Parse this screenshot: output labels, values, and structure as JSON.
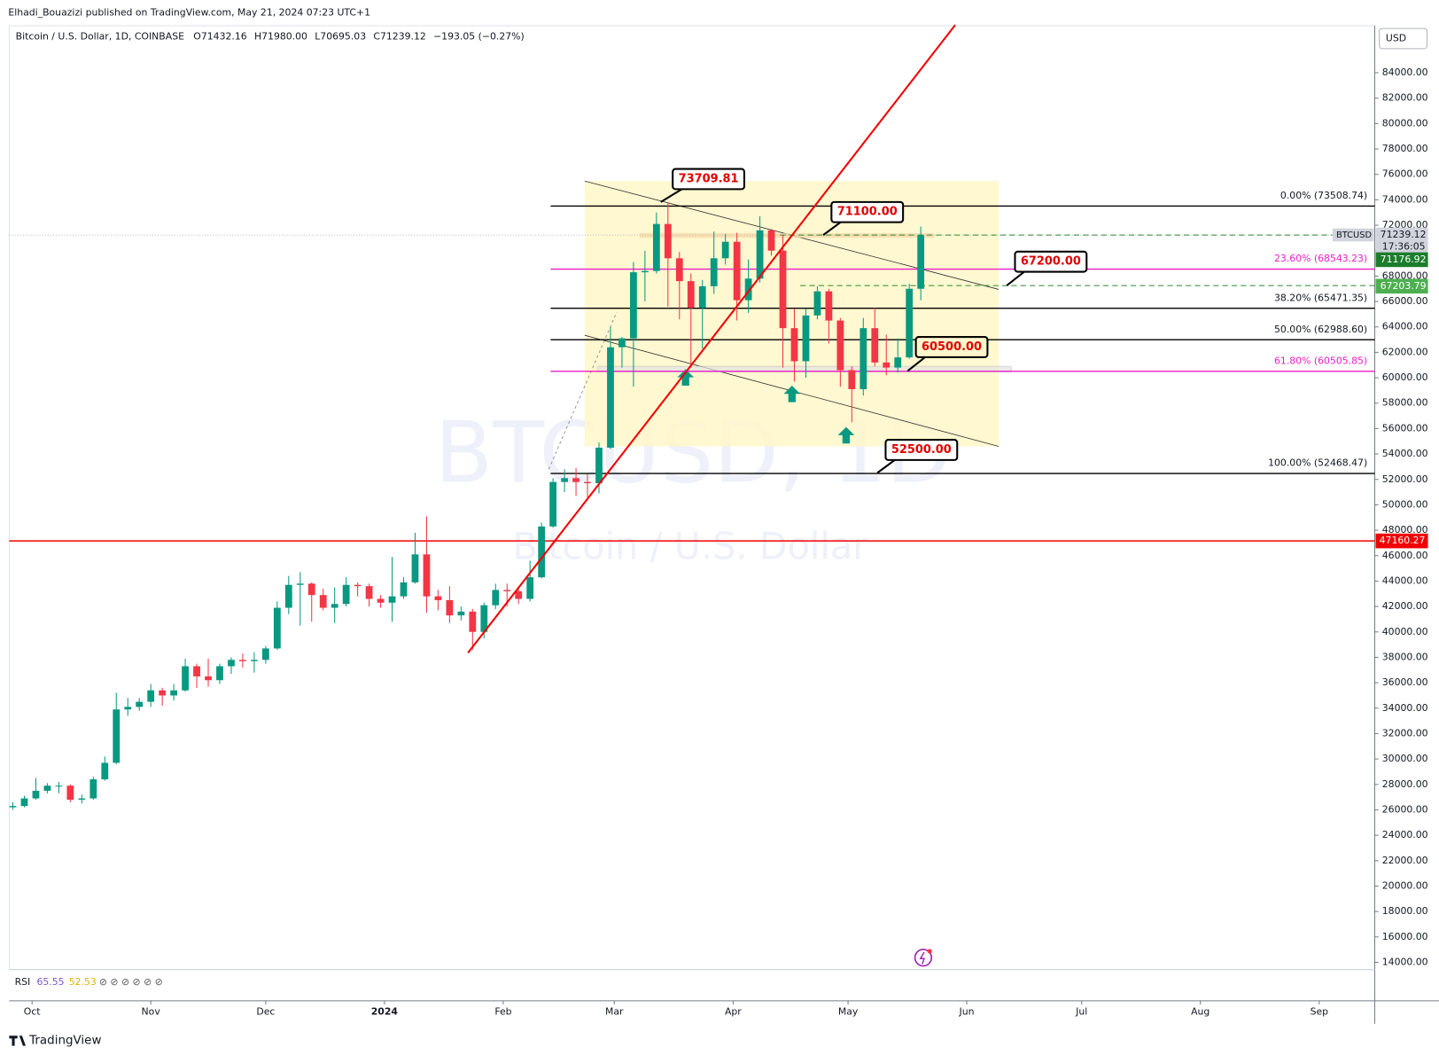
{
  "header": {
    "published": "Elhadi_Bouazizi published on TradingView.com, May 21, 2024 07:23 UTC+1",
    "symbol": "Bitcoin / U.S. Dollar, 1D, COINBASE",
    "ohlc": [
      "O71432.16",
      "H71980.00",
      "L70695.03",
      "C71239.12",
      "−193.05 (−0.27%)"
    ]
  },
  "chart_data": {
    "type": "candlestick",
    "up_color": "#089981",
    "down_color": "#f23645",
    "candles": [
      [
        26200,
        26600,
        26000,
        26300
      ],
      [
        26300,
        27100,
        26200,
        26900
      ],
      [
        26900,
        28500,
        26800,
        27500
      ],
      [
        27500,
        28100,
        27300,
        27900
      ],
      [
        27900,
        28200,
        27300,
        27900
      ],
      [
        27900,
        28000,
        26600,
        26800
      ],
      [
        26800,
        27200,
        26500,
        26900
      ],
      [
        26900,
        28600,
        26800,
        28400
      ],
      [
        28400,
        30200,
        28300,
        29700
      ],
      [
        29700,
        35200,
        29600,
        33900
      ],
      [
        33900,
        34800,
        33400,
        34100
      ],
      [
        34100,
        34800,
        33800,
        34500
      ],
      [
        34500,
        35900,
        34100,
        35400
      ],
      [
        35400,
        35600,
        34200,
        35000
      ],
      [
        35000,
        35900,
        34600,
        35400
      ],
      [
        35400,
        37900,
        35300,
        37300
      ],
      [
        37300,
        37500,
        35600,
        36500
      ],
      [
        36500,
        37900,
        35700,
        36200
      ],
      [
        36200,
        37500,
        35900,
        37300
      ],
      [
        37300,
        38000,
        36700,
        37800
      ],
      [
        37800,
        38300,
        37200,
        37700
      ],
      [
        37700,
        38400,
        36800,
        37800
      ],
      [
        37800,
        38900,
        37500,
        38700
      ],
      [
        38700,
        42400,
        38600,
        41900
      ],
      [
        41900,
        44400,
        41400,
        43700
      ],
      [
        43700,
        44700,
        40500,
        43800
      ],
      [
        43800,
        43900,
        40800,
        42900
      ],
      [
        42900,
        43400,
        41700,
        41900
      ],
      [
        41900,
        43500,
        40700,
        42200
      ],
      [
        42200,
        44300,
        42000,
        43700
      ],
      [
        43700,
        43900,
        42800,
        43600
      ],
      [
        43600,
        43800,
        42000,
        42600
      ],
      [
        42600,
        42900,
        41900,
        42300
      ],
      [
        42300,
        45900,
        40800,
        42800
      ],
      [
        42800,
        44300,
        42600,
        43900
      ],
      [
        43900,
        47800,
        43800,
        46100
      ],
      [
        46100,
        49100,
        41500,
        42800
      ],
      [
        42800,
        43300,
        41700,
        42500
      ],
      [
        42500,
        43600,
        40700,
        41300
      ],
      [
        41300,
        42000,
        40900,
        41600
      ],
      [
        41600,
        41800,
        38600,
        40000
      ],
      [
        40000,
        42300,
        39500,
        42100
      ],
      [
        42100,
        43800,
        41800,
        43300
      ],
      [
        43300,
        43800,
        42000,
        43200
      ],
      [
        43200,
        43600,
        42200,
        42600
      ],
      [
        42600,
        45600,
        42400,
        44300
      ],
      [
        44300,
        48600,
        44200,
        48300
      ],
      [
        48300,
        52100,
        48200,
        51800
      ],
      [
        51800,
        52800,
        51000,
        52100
      ],
      [
        52100,
        52900,
        50700,
        51800
      ],
      [
        51800,
        52400,
        50600,
        51700
      ],
      [
        51700,
        54900,
        50900,
        54500
      ],
      [
        54500,
        64000,
        54400,
        62400
      ],
      [
        62400,
        63200,
        60800,
        63100
      ],
      [
        63100,
        69100,
        59300,
        68300
      ],
      [
        68300,
        70000,
        66000,
        68400
      ],
      [
        68400,
        73000,
        68200,
        72100
      ],
      [
        72100,
        73800,
        65600,
        69400
      ],
      [
        69400,
        69900,
        64600,
        67600
      ],
      [
        67600,
        68200,
        60800,
        65500
      ],
      [
        65500,
        67700,
        62300,
        67200
      ],
      [
        67200,
        71500,
        66600,
        69400
      ],
      [
        69400,
        71300,
        68900,
        70700
      ],
      [
        70700,
        71400,
        64500,
        66100
      ],
      [
        66100,
        69300,
        65100,
        67800
      ],
      [
        67800,
        72700,
        67500,
        71600
      ],
      [
        71600,
        71700,
        69600,
        70000
      ],
      [
        70000,
        71200,
        60800,
        63900
      ],
      [
        63900,
        65400,
        59700,
        61300
      ],
      [
        61300,
        65400,
        60000,
        64900
      ],
      [
        64900,
        67200,
        64600,
        66800
      ],
      [
        66800,
        67000,
        62700,
        64500
      ],
      [
        64500,
        64700,
        59300,
        60600
      ],
      [
        60600,
        60900,
        56500,
        59100
      ],
      [
        59100,
        64700,
        58600,
        63900
      ],
      [
        63900,
        65500,
        60900,
        61200
      ],
      [
        61200,
        63400,
        60200,
        60800
      ],
      [
        60800,
        63100,
        60400,
        61600
      ],
      [
        61600,
        67400,
        61500,
        67000
      ],
      [
        67000,
        71900,
        66100,
        71200
      ]
    ],
    "xlim": [
      -0.32,
      118.5
    ],
    "xticks": [
      {
        "value": 1.67,
        "label": "Oct"
      },
      {
        "value": 12,
        "label": "Nov"
      },
      {
        "value": 22,
        "label": "Dec"
      },
      {
        "value": 32.33,
        "label": "2024"
      },
      {
        "value": 42.67,
        "label": "Feb"
      },
      {
        "value": 52.33,
        "label": "Mar"
      },
      {
        "value": 62.67,
        "label": "Apr"
      },
      {
        "value": 72.67,
        "label": "May"
      },
      {
        "value": 83,
        "label": "Jun"
      },
      {
        "value": 93,
        "label": "Jul"
      },
      {
        "value": 103.33,
        "label": "Aug"
      },
      {
        "value": 113.67,
        "label": "Sep"
      }
    ],
    "ylim": [
      13500,
      87700
    ],
    "yticks": [
      {
        "value": 84000,
        "label": "84000.00"
      },
      {
        "value": 82000,
        "label": "82000.00"
      },
      {
        "value": 80000,
        "label": "80000.00"
      },
      {
        "value": 78000,
        "label": "78000.00"
      },
      {
        "value": 76000,
        "label": "76000.00"
      },
      {
        "value": 74000,
        "label": "74000.00"
      },
      {
        "value": 72000,
        "label": "72000.00"
      },
      {
        "value": 70000,
        "label": "70000.00"
      },
      {
        "value": 68000,
        "label": "68000.00"
      },
      {
        "value": 66000,
        "label": "66000.00"
      },
      {
        "value": 64000,
        "label": "64000.00"
      },
      {
        "value": 62000,
        "label": "62000.00"
      },
      {
        "value": 60000,
        "label": "60000.00"
      },
      {
        "value": 58000,
        "label": "58000.00"
      },
      {
        "value": 56000,
        "label": "56000.00"
      },
      {
        "value": 54000,
        "label": "54000.00"
      },
      {
        "value": 52000,
        "label": "52000.00"
      },
      {
        "value": 50000,
        "label": "50000.00"
      },
      {
        "value": 48000,
        "label": "48000.00"
      },
      {
        "value": 46000,
        "label": "46000.00"
      },
      {
        "value": 44000,
        "label": "44000.00"
      },
      {
        "value": 42000,
        "label": "42000.00"
      },
      {
        "value": 40000,
        "label": "40000.00"
      },
      {
        "value": 38000,
        "label": "38000.00"
      },
      {
        "value": 36000,
        "label": "36000.00"
      },
      {
        "value": 34000,
        "label": "34000.00"
      },
      {
        "value": 32000,
        "label": "32000.00"
      },
      {
        "value": 30000,
        "label": "30000.00"
      },
      {
        "value": 28000,
        "label": "28000.00"
      },
      {
        "value": 26000,
        "label": "26000.00"
      },
      {
        "value": 24000,
        "label": "24000.00"
      },
      {
        "value": 22000,
        "label": "22000.00"
      },
      {
        "value": 20000,
        "label": "20000.00"
      },
      {
        "value": 18000,
        "label": "18000.00"
      },
      {
        "value": 16000,
        "label": "16000.00"
      },
      {
        "value": 14000,
        "label": "14000.00"
      }
    ],
    "fib_levels": [
      {
        "value": 73508.74,
        "label": "0.00% (73508.74)",
        "color": "#000000"
      },
      {
        "value": 68543.23,
        "label": "23.60% (68543.23)",
        "color": "#e91ec8"
      },
      {
        "value": 65471.35,
        "label": "38.20% (65471.35)",
        "color": "#000000"
      },
      {
        "value": 62988.6,
        "label": "50.00% (62988.60)",
        "color": "#000000"
      },
      {
        "value": 60505.85,
        "label": "61.80% (60505.85)",
        "color": "#e91ec8"
      },
      {
        "value": 52468.47,
        "label": "100.00% (52468.47)",
        "color": "#000000"
      }
    ],
    "horizontal_line": {
      "value": 47160.27,
      "color": "#f00000"
    },
    "trendline": {
      "color": "#f00000",
      "points": [
        [
          39.6,
          38350
        ],
        [
          82,
          87760
        ]
      ]
    },
    "channel": {
      "upper": [
        [
          49.76,
          75476
        ],
        [
          85.78,
          66952
        ]
      ],
      "lower": [
        [
          49.76,
          63340
        ],
        [
          85.78,
          54600
        ]
      ],
      "fill": "#fff7c8"
    },
    "callouts": [
      "73709.81",
      "71100.00",
      "67200.00",
      "60500.00",
      "52500.00"
    ],
    "currency": "USD",
    "symbol_tag": "BTCUSD",
    "last_price": 71239.12,
    "countdown": "17:36:05",
    "green_badges": [
      71176.92,
      67203.79
    ],
    "watermark": [
      "BTCUSD, 1D",
      "Bitcoin / U.S. Dollar"
    ]
  },
  "rsi": {
    "label": "RSI",
    "values": [
      "65.55",
      "52.53"
    ]
  },
  "footer": "TradingView"
}
